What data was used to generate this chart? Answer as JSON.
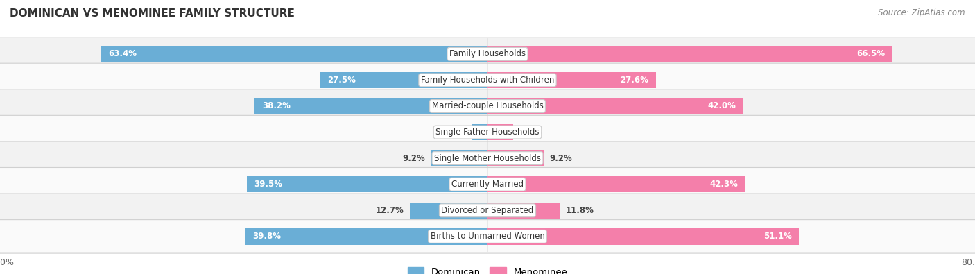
{
  "title": "DOMINICAN VS MENOMINEE FAMILY STRUCTURE",
  "source": "Source: ZipAtlas.com",
  "categories": [
    "Family Households",
    "Family Households with Children",
    "Married-couple Households",
    "Single Father Households",
    "Single Mother Households",
    "Currently Married",
    "Divorced or Separated",
    "Births to Unmarried Women"
  ],
  "dominican": [
    63.4,
    27.5,
    38.2,
    2.5,
    9.2,
    39.5,
    12.7,
    39.8
  ],
  "menominee": [
    66.5,
    27.6,
    42.0,
    4.2,
    9.2,
    42.3,
    11.8,
    51.1
  ],
  "max_val": 80.0,
  "dominican_color": "#6aaed6",
  "menominee_color": "#f47faa",
  "dominican_light": "#aecde8",
  "menominee_light": "#f9b8cc",
  "bg_color": "#ffffff",
  "row_bg_light": "#f2f2f2",
  "row_bg_dark": "#e8e8e8",
  "title_color": "#333333",
  "source_color": "#888888",
  "bar_height": 0.62,
  "legend_labels": [
    "Dominican",
    "Menominee"
  ],
  "value_fontsize": 8.5,
  "label_fontsize": 8.5
}
